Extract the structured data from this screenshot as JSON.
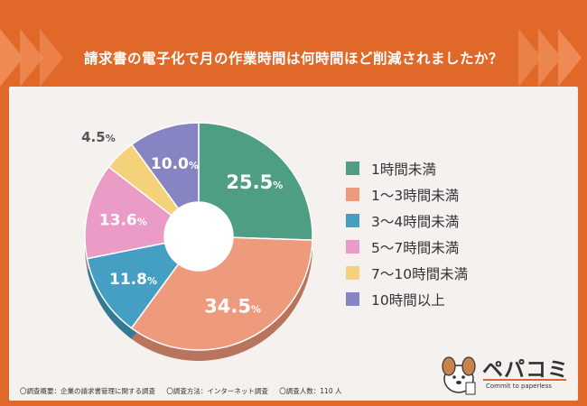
{
  "title": "請求書の電子化で月の作業時間は何時間ほど削減されましたか？",
  "chart_data": {
    "type": "pie",
    "donut": true,
    "categories": [
      "1時間未満",
      "1〜3時間未満",
      "3〜4時間未満",
      "5〜7時間未満",
      "7〜10時間未満",
      "10時間以上"
    ],
    "values": [
      25.5,
      34.5,
      11.8,
      13.6,
      4.5,
      10.0
    ],
    "labels": [
      "25.5",
      "34.5",
      "11.8",
      "13.6",
      "4.5",
      "10.0"
    ],
    "unit": "%",
    "colors": [
      "#4e9e84",
      "#ee9a7d",
      "#459fc2",
      "#ea9bc6",
      "#f5d27a",
      "#8684c3"
    ],
    "shadow_colors": [
      "#3b7a66",
      "#b8745c",
      "#347a95",
      "#b5789a",
      "#bf9f5a",
      "#65649a"
    ],
    "legend_position": "right"
  },
  "footnotes": [
    "〇調査概要：企業の請求書管理に関する調査",
    "〇調査方法：インターネット調査",
    "〇調査人数：110 人"
  ],
  "logo": {
    "name": "ペパコミ",
    "tagline": "Commit to paperless"
  },
  "colors": {
    "header": "#e0692a",
    "panel": "#f4f1ee"
  }
}
